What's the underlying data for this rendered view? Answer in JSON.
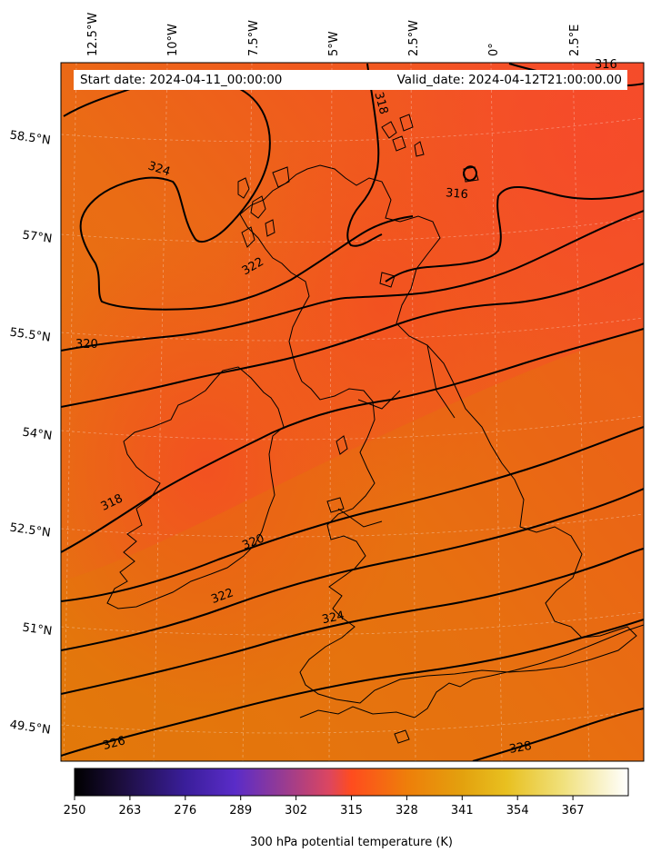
{
  "header": {
    "start_date": "Start date: 2024-04-11_00:00:00",
    "valid_date": "Valid_date: 2024-04-12T21:00:00.00"
  },
  "map": {
    "type": "potential temperature map",
    "variable": "300 hPa potential temperature",
    "units": "K",
    "longitude_labels": [
      "12.5°W",
      "10°W",
      "7.5°W",
      "5°W",
      "2.5°W",
      "0°",
      "2.5°E"
    ],
    "latitude_labels": [
      "58.5°N",
      "57°N",
      "55.5°N",
      "54°N",
      "52.5°N",
      "51°N",
      "49.5°N"
    ],
    "contour_labels": [
      "316",
      "318",
      "324",
      "316",
      "322",
      "320",
      "318",
      "320",
      "322",
      "324",
      "326",
      "328"
    ],
    "colors": {
      "warm_orange": "#e97a0b",
      "red_orange": "#f25824",
      "coast": "#000000"
    }
  },
  "colorbar": {
    "label": "300 hPa potential temperature (K)",
    "ticks": [
      "250",
      "263",
      "276",
      "289",
      "302",
      "315",
      "328",
      "341",
      "354",
      "367"
    ],
    "range": [
      250,
      380
    ]
  }
}
